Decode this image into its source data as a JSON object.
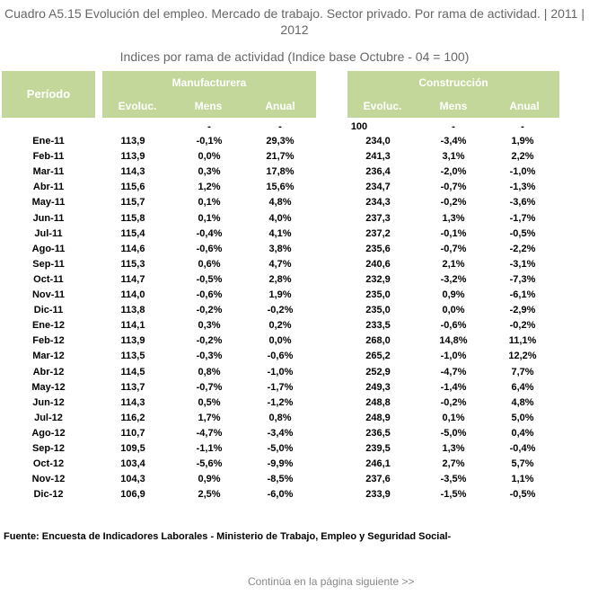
{
  "title": "Cuadro A5.15 Evolución del empleo. Mercado de trabajo. Sector privado. Por rama de actividad. | 2011 | 2012",
  "subtitle": "Indices por rama de actividad (Indice base Octubre - 04 = 100)",
  "header": {
    "periodo": "Período",
    "manufacturera": "Manufacturera",
    "construccion": "Construcción",
    "sub": [
      "Evoluc.",
      "Mens",
      "Anual"
    ]
  },
  "base_row": [
    "",
    "-",
    "-",
    "100",
    "-",
    "-"
  ],
  "rows": [
    {
      "p": "Ene-11",
      "v": [
        "113,9",
        "-0,1%",
        "29,3%",
        "234,0",
        "-3,4%",
        "1,9%"
      ]
    },
    {
      "p": "Feb-11",
      "v": [
        "113,9",
        "0,0%",
        "21,7%",
        "241,3",
        "3,1%",
        "2,2%"
      ]
    },
    {
      "p": "Mar-11",
      "v": [
        "114,3",
        "0,3%",
        "17,8%",
        "236,4",
        "-2,0%",
        "-1,0%"
      ]
    },
    {
      "p": "Abr-11",
      "v": [
        "115,6",
        "1,2%",
        "15,6%",
        "234,7",
        "-0,7%",
        "-1,3%"
      ]
    },
    {
      "p": "May-11",
      "v": [
        "115,7",
        "0,1%",
        "4,8%",
        "234,3",
        "-0,2%",
        "-3,6%"
      ]
    },
    {
      "p": "Jun-11",
      "v": [
        "115,8",
        "0,1%",
        "4,0%",
        "237,3",
        "1,3%",
        "-1,7%"
      ]
    },
    {
      "p": "Jul-11",
      "v": [
        "115,4",
        "-0,4%",
        "4,1%",
        "237,2",
        "-0,1%",
        "-0,5%"
      ]
    },
    {
      "p": "Ago-11",
      "v": [
        "114,6",
        "-0,6%",
        "3,8%",
        "235,6",
        "-0,7%",
        "-2,2%"
      ]
    },
    {
      "p": "Sep-11",
      "v": [
        "115,3",
        "0,6%",
        "4,7%",
        "240,6",
        "2,1%",
        "-3,1%"
      ]
    },
    {
      "p": "Oct-11",
      "v": [
        "114,7",
        "-0,5%",
        "2,8%",
        "232,9",
        "-3,2%",
        "-7,3%"
      ]
    },
    {
      "p": "Nov-11",
      "v": [
        "114,0",
        "-0,6%",
        "1,9%",
        "235,0",
        "0,9%",
        "-6,1%"
      ]
    },
    {
      "p": "Dic-11",
      "v": [
        "113,8",
        "-0,2%",
        "-0,2%",
        "235,0",
        "0,0%",
        "-2,9%"
      ]
    },
    {
      "p": "Ene-12",
      "v": [
        "114,1",
        "0,3%",
        "0,2%",
        "233,5",
        "-0,6%",
        "-0,2%"
      ]
    },
    {
      "p": "Feb-12",
      "v": [
        "113,9",
        "-0,2%",
        "0,0%",
        "268,0",
        "14,8%",
        "11,1%"
      ]
    },
    {
      "p": "Mar-12",
      "v": [
        "113,5",
        "-0,3%",
        "-0,6%",
        "265,2",
        "-1,0%",
        "12,2%"
      ]
    },
    {
      "p": "Abr-12",
      "v": [
        "114,5",
        "0,8%",
        "-1,0%",
        "252,9",
        "-4,7%",
        "7,7%"
      ]
    },
    {
      "p": "May-12",
      "v": [
        "113,7",
        "-0,7%",
        "-1,7%",
        "249,3",
        "-1,4%",
        "6,4%"
      ]
    },
    {
      "p": "Jun-12",
      "v": [
        "114,3",
        "0,5%",
        "-1,2%",
        "248,8",
        "-0,2%",
        "4,8%"
      ]
    },
    {
      "p": "Jul-12",
      "v": [
        "116,2",
        "1,7%",
        "0,8%",
        "248,9",
        "0,1%",
        "5,0%"
      ]
    },
    {
      "p": "Ago-12",
      "v": [
        "110,7",
        "-4,7%",
        "-3,4%",
        "236,5",
        "-5,0%",
        "0,4%"
      ]
    },
    {
      "p": "Sep-12",
      "v": [
        "109,5",
        "-1,1%",
        "-5,0%",
        "239,5",
        "1,3%",
        "-0,4%"
      ]
    },
    {
      "p": "Oct-12",
      "v": [
        "103,4",
        "-5,6%",
        "-9,9%",
        "246,1",
        "2,7%",
        "5,7%"
      ]
    },
    {
      "p": "Nov-12",
      "v": [
        "104,3",
        "0,9%",
        "-8,5%",
        "237,6",
        "-3,5%",
        "1,1%"
      ]
    },
    {
      "p": "Dic-12",
      "v": [
        "106,9",
        "2,5%",
        "-6,0%",
        "233,9",
        "-1,5%",
        "-0,5%"
      ]
    }
  ],
  "source": "Fuente: Encuesta de Indicadores Laborales - Ministerio de Trabajo, Empleo y Seguridad Social-",
  "next_link": "Continúa en la página siguiente >>"
}
